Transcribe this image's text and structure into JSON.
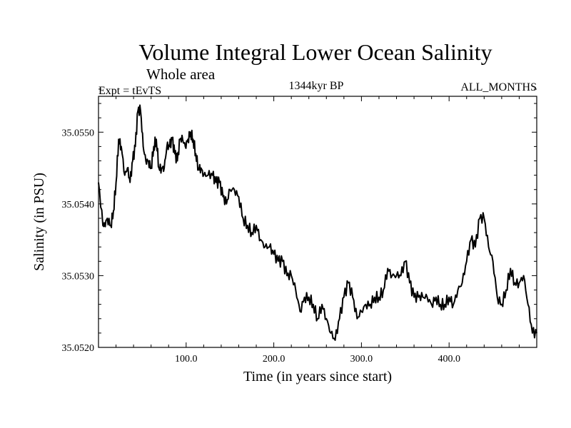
{
  "chart_data": {
    "type": "line",
    "title": "Volume Integral Lower Ocean Salinity",
    "subtitle": "Whole area",
    "left_header": "Expt = tEvTS",
    "center_header": "1344kyr BP",
    "right_header": "ALL_MONTHS",
    "xlabel": "Time (in years since start)",
    "ylabel": "Salinity (in PSU)",
    "xlim": [
      0,
      500
    ],
    "ylim": [
      35.052,
      35.0555
    ],
    "x_ticks": [
      100,
      200,
      300,
      400
    ],
    "x_tick_labels": [
      "100.0",
      "200.0",
      "300.0",
      "400.0"
    ],
    "y_ticks": [
      35.052,
      35.053,
      35.054,
      35.055
    ],
    "y_tick_labels": [
      "35.0520",
      "35.0530",
      "35.0540",
      "35.0550"
    ],
    "series": [
      {
        "name": "Salinity",
        "color": "#000000",
        "x": [
          0,
          5,
          7,
          10,
          14,
          17,
          20,
          23,
          26,
          30,
          33,
          36,
          39,
          42,
          45,
          48,
          51,
          54,
          57,
          60,
          63,
          66,
          69,
          72,
          75,
          78,
          81,
          84,
          87,
          90,
          93,
          96,
          99,
          102,
          105,
          108,
          111,
          114,
          117,
          120,
          125,
          130,
          134,
          138,
          142,
          146,
          150,
          155,
          160,
          165,
          170,
          175,
          180,
          185,
          190,
          195,
          200,
          205,
          210,
          215,
          220,
          225,
          230,
          235,
          240,
          245,
          250,
          255,
          260,
          265,
          270,
          275,
          280,
          285,
          290,
          295,
          300,
          305,
          310,
          315,
          320,
          325,
          330,
          335,
          340,
          345,
          350,
          355,
          360,
          365,
          370,
          375,
          380,
          385,
          390,
          395,
          400,
          405,
          410,
          415,
          420,
          425,
          430,
          435,
          440,
          445,
          450,
          455,
          460,
          465,
          470,
          475,
          480,
          485,
          490,
          495,
          500
        ],
        "values": [
          35.0543,
          35.0537,
          35.0537,
          35.0538,
          35.0537,
          35.0539,
          35.0543,
          35.0549,
          35.0548,
          35.0544,
          35.0545,
          35.0543,
          35.0546,
          35.0548,
          35.0553,
          35.0553,
          35.0548,
          35.0546,
          35.0546,
          35.0545,
          35.0548,
          35.0549,
          35.0545,
          35.0545,
          35.0545,
          35.0548,
          35.0548,
          35.0549,
          35.0547,
          35.0546,
          35.0549,
          35.0549,
          35.0548,
          35.0549,
          35.055,
          35.0549,
          35.0547,
          35.0545,
          35.0545,
          35.0544,
          35.0544,
          35.0544,
          35.0543,
          35.0543,
          35.0541,
          35.054,
          35.0542,
          35.0542,
          35.0541,
          35.0538,
          35.0537,
          35.0536,
          35.0537,
          35.0535,
          35.0534,
          35.0534,
          35.0533,
          35.0532,
          35.0532,
          35.053,
          35.053,
          35.0528,
          35.0525,
          35.0527,
          35.0527,
          35.0526,
          35.0524,
          35.0526,
          35.0524,
          35.0522,
          35.0521,
          35.0524,
          35.0527,
          35.0529,
          35.0527,
          35.0524,
          35.0525,
          35.0526,
          35.0526,
          35.0527,
          35.0527,
          35.0528,
          35.0531,
          35.053,
          35.053,
          35.053,
          35.0532,
          35.0529,
          35.0527,
          35.0527,
          35.0527,
          35.0527,
          35.0526,
          35.0527,
          35.0526,
          35.0526,
          35.0527,
          35.0526,
          35.0528,
          35.0529,
          35.0532,
          35.0535,
          35.0534,
          35.0538,
          35.0538,
          35.0534,
          35.0532,
          35.0527,
          35.0526,
          35.0528,
          35.0531,
          35.0529,
          35.0529,
          35.053,
          35.0526,
          35.0522,
          35.0522
        ]
      }
    ]
  }
}
